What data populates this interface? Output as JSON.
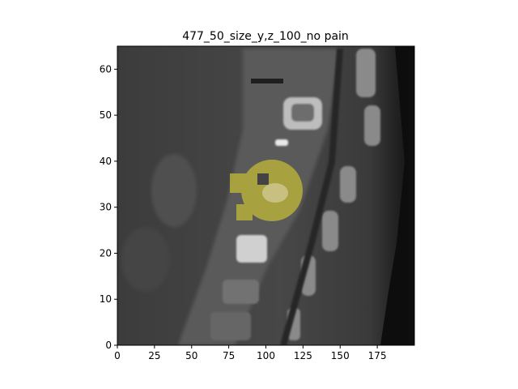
{
  "figure": {
    "title": "477_50_size_y,z_100_no pain",
    "image_description_icon": "ct-sagittal-slice-icon"
  },
  "chart_data": {
    "type": "heatmap",
    "title": "477_50_size_y,z_100_no pain",
    "xlabel": "",
    "ylabel": "",
    "xlim": [
      0,
      200
    ],
    "ylim": [
      0,
      65
    ],
    "x_ticks": [
      0,
      25,
      50,
      75,
      100,
      125,
      150,
      175
    ],
    "y_ticks": [
      0,
      10,
      20,
      30,
      40,
      50,
      60
    ],
    "colormap": "gray",
    "overlay": {
      "color": "#c8c040",
      "shape": "roughly circular segmentation mask",
      "center": [
        110,
        32
      ],
      "radius": 9
    },
    "grid": false
  },
  "colors": {
    "overlay": "#c8c040",
    "bone": "#d8d8d8",
    "soft_tissue": "#4a4a4a",
    "background": "#000000"
  }
}
